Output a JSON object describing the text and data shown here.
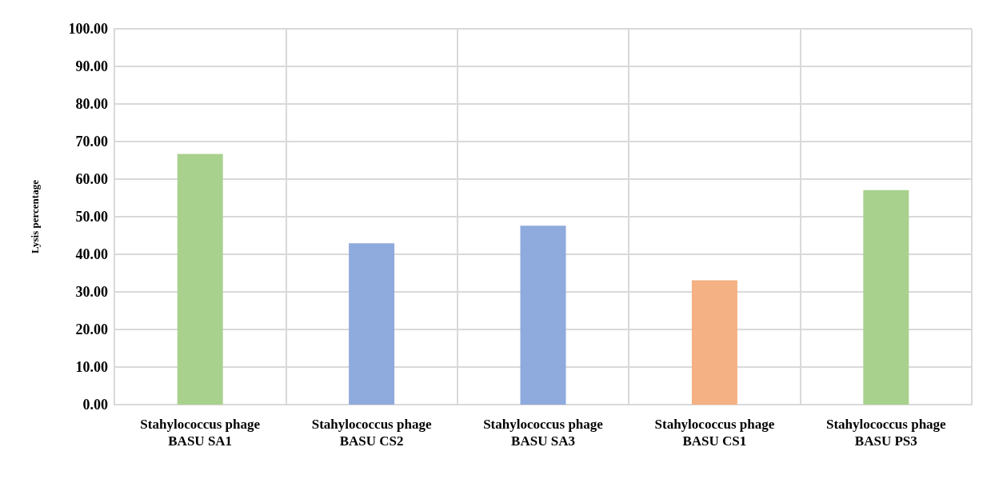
{
  "chart_data": {
    "type": "bar",
    "ylabel": "Lysis percentage",
    "categories": [
      "Stahylococcus phage\nBASU SA1",
      "Stahylococcus phage\nBASU CS2",
      "Stahylococcus phage\nBASU SA3",
      "Stahylococcus phage\nBASU CS1",
      "Stahylococcus phage\nBASU PS3"
    ],
    "values": [
      66.7,
      42.9,
      47.6,
      33.1,
      57.1
    ],
    "colors": [
      "#a9d18e",
      "#8faadc",
      "#8faadc",
      "#f4b183",
      "#a9d18e"
    ],
    "ylim": [
      0,
      100
    ],
    "yticks": [
      {
        "value": 0,
        "label": "0.00"
      },
      {
        "value": 10,
        "label": "10.00"
      },
      {
        "value": 20,
        "label": "20.00"
      },
      {
        "value": 30,
        "label": "30.00"
      },
      {
        "value": 40,
        "label": "40.00"
      },
      {
        "value": 50,
        "label": "50.00"
      },
      {
        "value": 60,
        "label": "60.00"
      },
      {
        "value": 70,
        "label": "70.00"
      },
      {
        "value": 80,
        "label": "80.00"
      },
      {
        "value": 90,
        "label": "90.00"
      },
      {
        "value": 100,
        "label": "100.00"
      }
    ],
    "grid": true
  }
}
